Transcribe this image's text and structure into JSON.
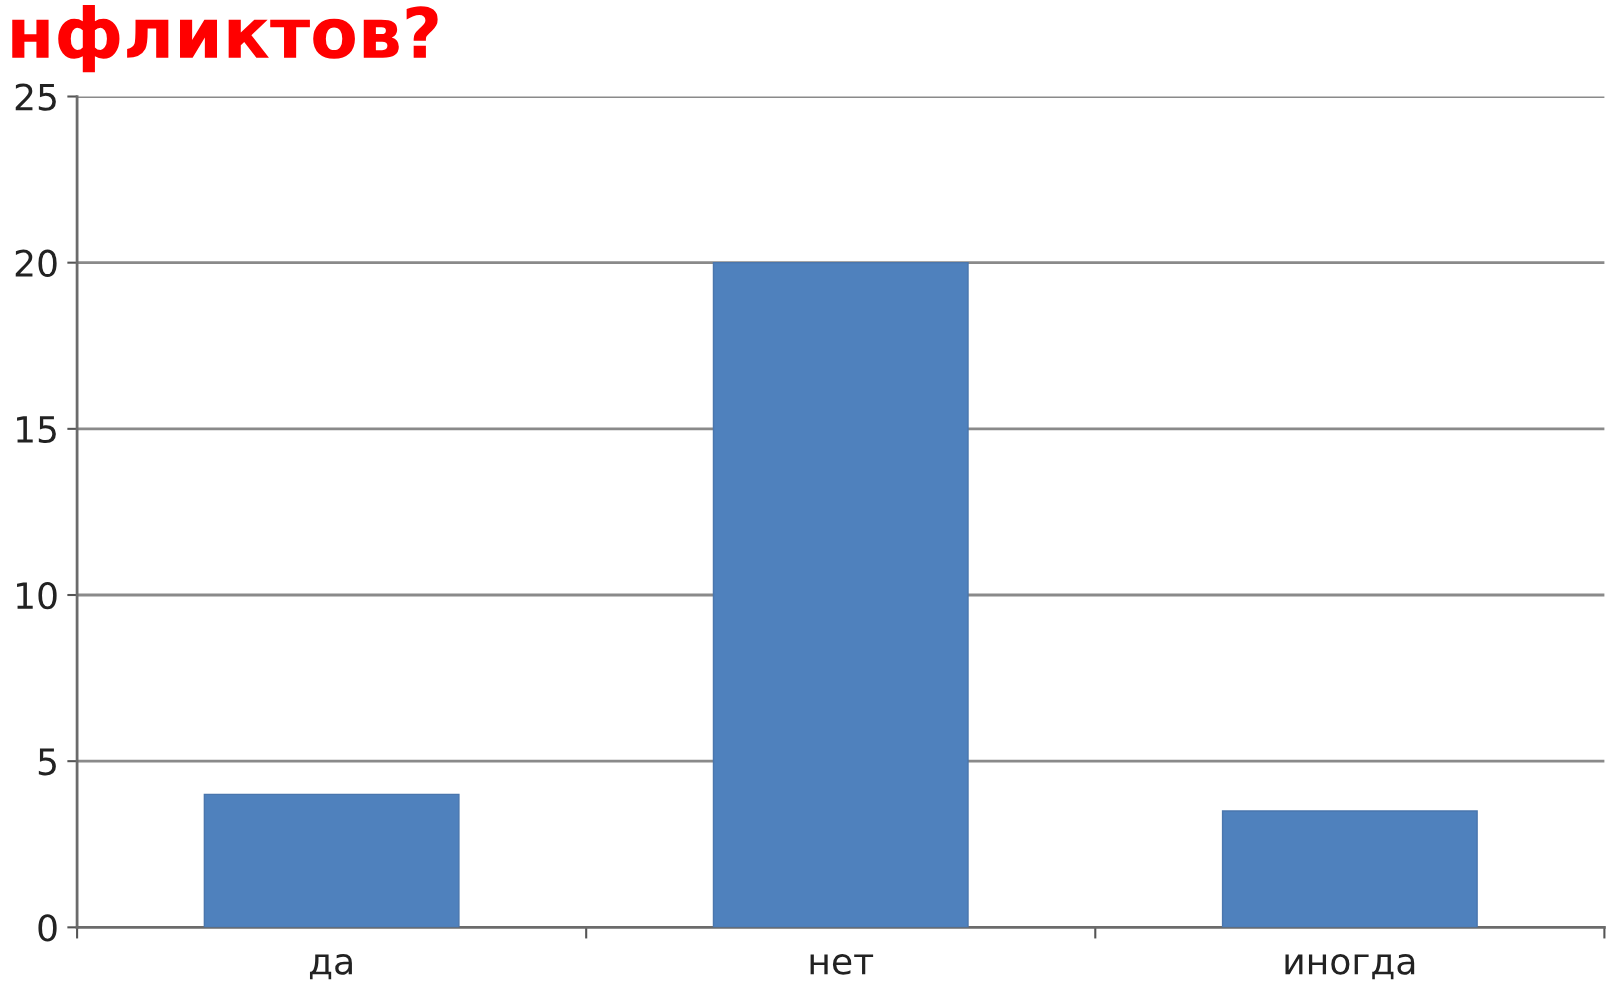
{
  "chart_data": {
    "type": "bar",
    "title": "нфликтов?",
    "categories": [
      "да",
      "нет",
      "иногда"
    ],
    "values": [
      4,
      20,
      3.5
    ],
    "color": "#4f81bd",
    "ylim": [
      0,
      25
    ],
    "yticks": [
      0,
      5,
      10,
      15,
      20,
      25
    ],
    "grid": "y"
  }
}
